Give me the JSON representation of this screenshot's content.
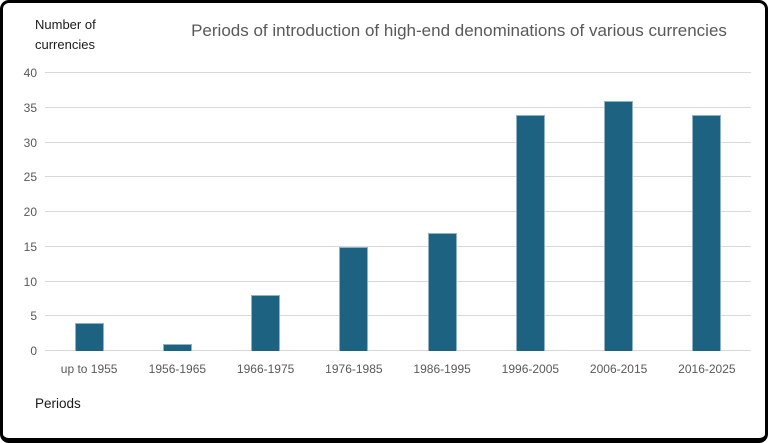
{
  "frame": {
    "background": "#FFFFFF",
    "border_color": "#000000"
  },
  "chart_data": {
    "type": "bar",
    "title": "Periods of introduction of high-end denominations of various currencies",
    "xlabel": "Periods",
    "ylabel": "Number of currencies",
    "categories": [
      "up to 1955",
      "1956-1965",
      "1966-1975",
      "1976-1985",
      "1986-1995",
      "1996-2005",
      "2006-2015",
      "2016-2025"
    ],
    "values": [
      4,
      1,
      8,
      15,
      17,
      34,
      36,
      34
    ],
    "ylim": [
      0,
      40
    ],
    "yticks": [
      0,
      5,
      10,
      15,
      20,
      25,
      30,
      35,
      40
    ],
    "grid": true,
    "legend": "none",
    "colors": {
      "bar": "#1E6282",
      "bar_edge": "#8FB3C5",
      "gridline": "#D9D9D9",
      "title": "#595959",
      "tick_labels": "#595959",
      "axis_titles": "#1A1A1A"
    }
  }
}
